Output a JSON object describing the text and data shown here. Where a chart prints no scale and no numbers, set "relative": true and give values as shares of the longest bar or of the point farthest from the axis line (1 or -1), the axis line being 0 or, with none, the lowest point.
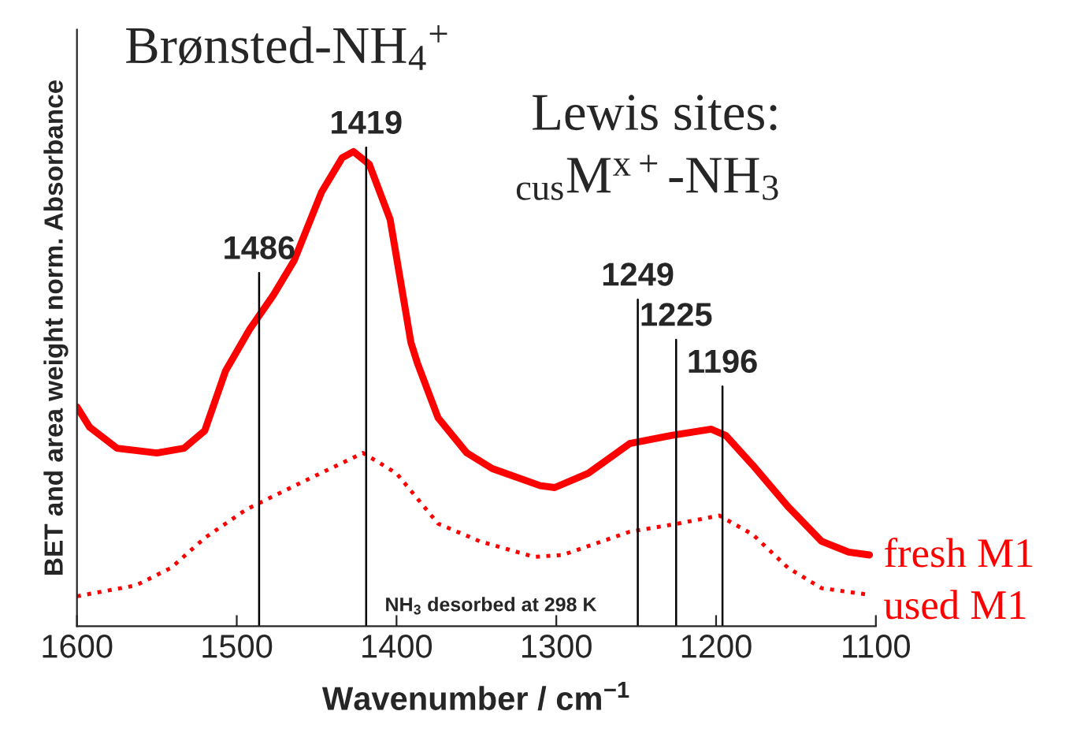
{
  "chart_data": {
    "type": "line",
    "relative": true,
    "xlabel": "Wavenumber / cm$^{−1}$",
    "ylabel": "BET and area weight norm. Absorbance",
    "xlim": [
      1600,
      1100
    ],
    "xticks": [
      1600,
      1500,
      1400,
      1300,
      1200,
      1100
    ],
    "tick_labels": "x",
    "grid": false,
    "legend": false,
    "series": [
      {
        "name": "fresh M1",
        "color": "#ff0000",
        "line_style": "solid",
        "x": [
          1600,
          1592,
          1575,
          1550,
          1533,
          1520,
          1507,
          1492,
          1477,
          1464,
          1447,
          1434,
          1427,
          1417,
          1404,
          1391,
          1387,
          1374,
          1356,
          1340,
          1310,
          1301,
          1280,
          1254,
          1228,
          1203,
          1194,
          1177,
          1155,
          1134,
          1117,
          1104
        ],
        "values": [
          0.462,
          0.419,
          0.375,
          0.365,
          0.375,
          0.412,
          0.538,
          0.625,
          0.698,
          0.771,
          0.914,
          0.987,
          1,
          0.973,
          0.857,
          0.598,
          0.555,
          0.439,
          0.365,
          0.332,
          0.296,
          0.292,
          0.322,
          0.385,
          0.402,
          0.415,
          0.402,
          0.339,
          0.252,
          0.179,
          0.156,
          0.15
        ]
      },
      {
        "name": "used M1",
        "color": "#ff0000",
        "line_style": "dotted",
        "x": [
          1600,
          1563,
          1541,
          1520,
          1494,
          1460,
          1421,
          1400,
          1374,
          1348,
          1314,
          1296,
          1254,
          1224,
          1198,
          1177,
          1155,
          1134,
          1104
        ],
        "values": [
          0.063,
          0.086,
          0.123,
          0.186,
          0.246,
          0.302,
          0.365,
          0.322,
          0.216,
          0.179,
          0.146,
          0.15,
          0.199,
          0.216,
          0.233,
          0.193,
          0.123,
          0.08,
          0.066
        ]
      }
    ],
    "ref_lines": [
      {
        "axis": "x",
        "value": 1486,
        "label": "1486",
        "color": "#000000"
      },
      {
        "axis": "x",
        "value": 1419,
        "label": "1419",
        "color": "#000000"
      },
      {
        "axis": "x",
        "value": 1249,
        "label": "1249",
        "color": "#000000"
      },
      {
        "axis": "x",
        "value": 1225,
        "label": "1225",
        "color": "#000000"
      },
      {
        "axis": "x",
        "value": 1196,
        "label": "1196",
        "color": "#000000"
      }
    ],
    "annotations": [
      "Brønsted-NH$_{4}$$^{+}$",
      "Lewis sites:",
      "$_{cus}$M$^{x+}$-NH$_{3}$",
      "NH$_{3}$ desorbed at 298 K"
    ]
  }
}
